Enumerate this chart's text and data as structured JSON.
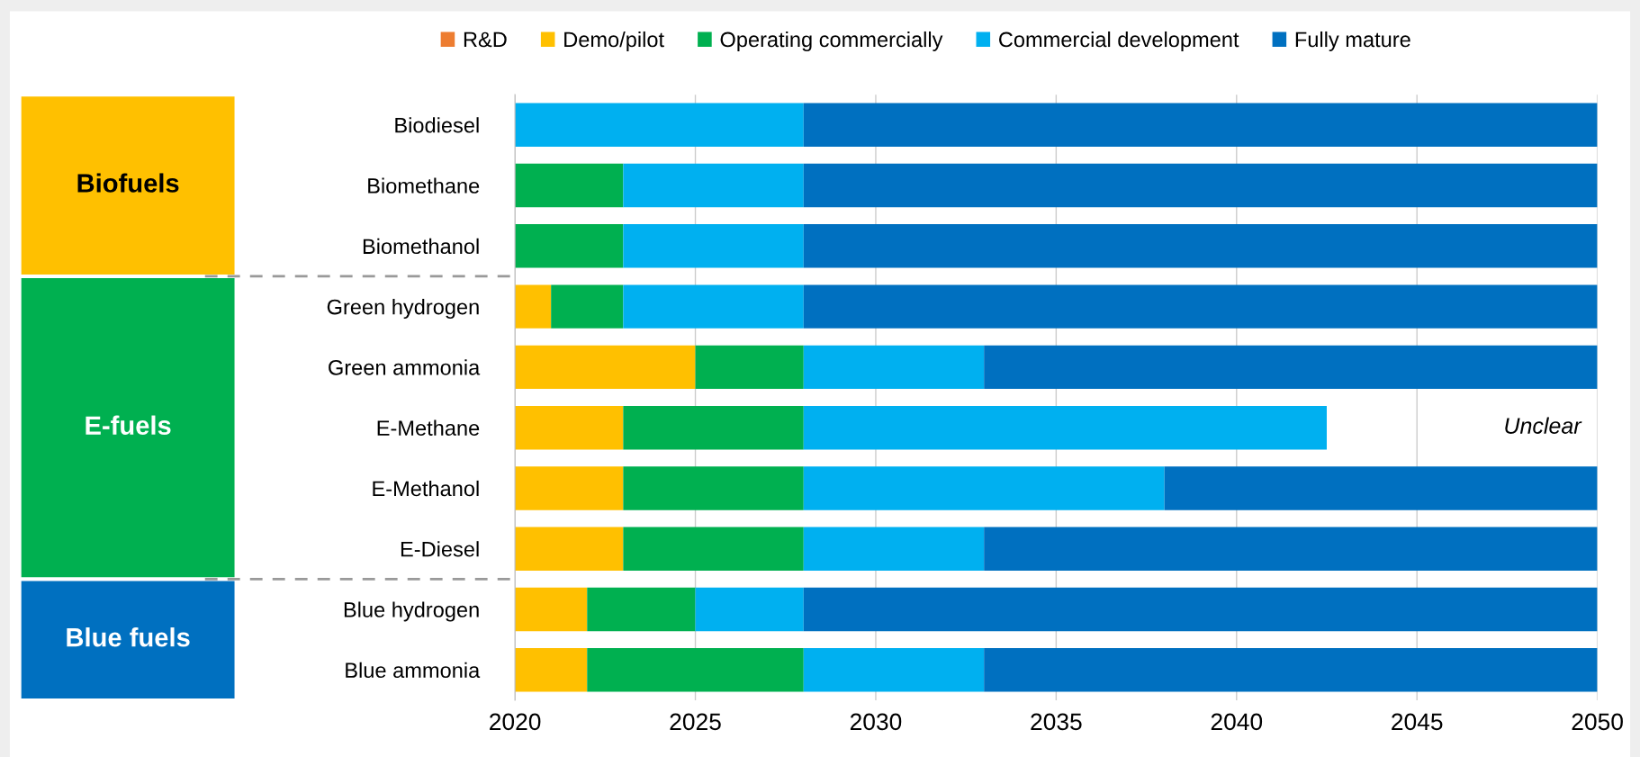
{
  "chart_data": {
    "type": "bar",
    "orientation": "horizontal",
    "categories": [
      "Biodiesel",
      "Biomethane",
      "Biomethanol",
      "Green hydrogen",
      "Green ammonia",
      "E-Methane",
      "E-Methanol",
      "E-Diesel",
      "Blue hydrogen",
      "Blue ammonia"
    ],
    "series": [
      {
        "name": "R&D",
        "color": "#ed7d31",
        "values": [
          null,
          null,
          null,
          null,
          null,
          null,
          null,
          null,
          null,
          null
        ],
        "base": [
          null,
          null,
          null,
          null,
          null,
          null,
          null,
          null,
          null,
          null
        ]
      },
      {
        "name": "Demo/pilot",
        "color": "#ffc000",
        "values": [
          null,
          null,
          null,
          1,
          5,
          3,
          3,
          3,
          2,
          2
        ],
        "base": [
          null,
          null,
          null,
          2020,
          2020,
          2020,
          2020,
          2020,
          2020,
          2020
        ]
      },
      {
        "name": "Operating commercially",
        "color": "#00b050",
        "values": [
          null,
          3,
          3,
          2,
          3,
          5,
          5,
          5,
          3,
          6
        ],
        "base": [
          null,
          2020,
          2020,
          2021,
          2025,
          2023,
          2023,
          2023,
          2022,
          2022
        ]
      },
      {
        "name": "Commercial development",
        "color": "#00b0f0",
        "values": [
          8,
          5,
          5,
          5,
          5,
          14.5,
          10,
          5,
          3,
          5
        ],
        "base": [
          2020,
          2023,
          2023,
          2023,
          2028,
          2028,
          2028,
          2028,
          2025,
          2028
        ]
      },
      {
        "name": "Fully mature",
        "color": "#0070c0",
        "values": [
          22,
          22,
          22,
          22,
          17,
          null,
          12,
          17,
          22,
          17
        ],
        "base": [
          2028,
          2028,
          2028,
          2028,
          2033,
          null,
          2038,
          2033,
          2028,
          2033
        ]
      }
    ],
    "xlim": [
      2020,
      2050
    ],
    "xticks": [
      2020,
      2025,
      2030,
      2035,
      2040,
      2045,
      2050
    ],
    "grid": "x",
    "legend": "top",
    "annotations": [
      "Unclear",
      "Biofuels",
      "E-fuels",
      "Blue fuels"
    ]
  }
}
